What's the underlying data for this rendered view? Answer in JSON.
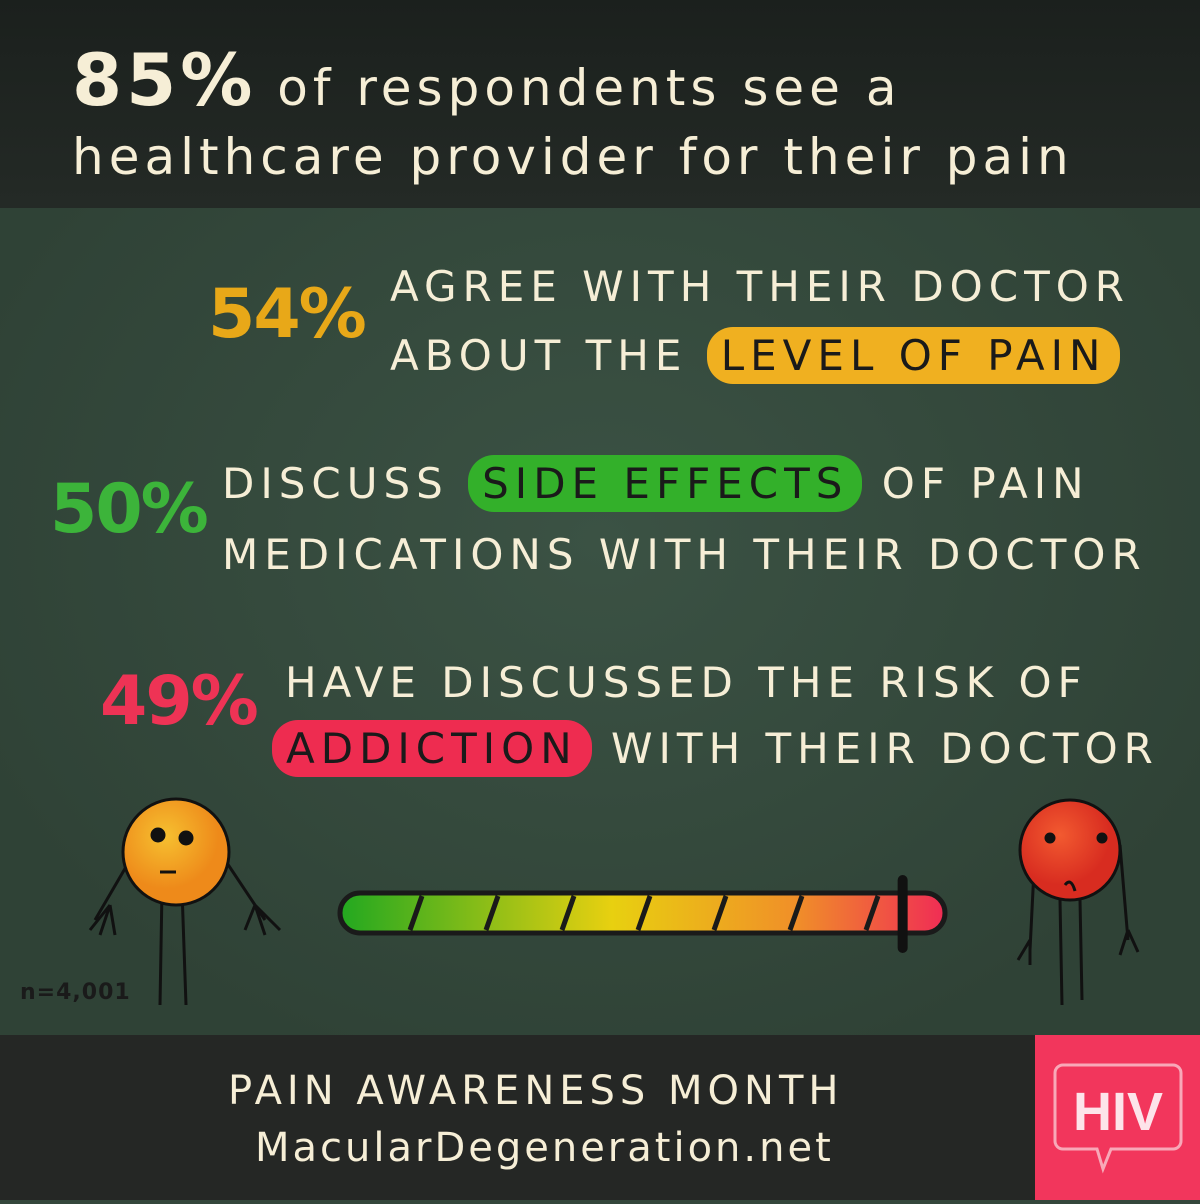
{
  "header": {
    "big_stat": "85%",
    "line1_rest": " of respondents see a",
    "line2": "healthcare provider for their pain"
  },
  "stats": [
    {
      "percent": "54%",
      "color": "#e8a818",
      "line1": "Agree with their doctor",
      "line2_before": "about the ",
      "highlight": "level of pain",
      "line2_after": ""
    },
    {
      "percent": "50%",
      "color": "#3cb43a",
      "line1_before": "Discuss ",
      "highlight": "side effects",
      "line1_after": " of pain",
      "line2": "medications with their doctor"
    },
    {
      "percent": "49%",
      "color": "#ee3355",
      "line1": "Have discussed the risk of",
      "highlight": "addiction",
      "line2_after": " with their doctor"
    }
  ],
  "pain_scale": {
    "level_pct": 93,
    "colors": [
      "#22a820",
      "#8cc820",
      "#e8d010",
      "#f09028",
      "#f03c50"
    ]
  },
  "sample_size": "n=4,001",
  "footer": {
    "line1": "PAIN AWARENESS MONTH",
    "line2": "MacularDegeneration.net"
  },
  "logo": {
    "text": "HIV",
    "color": "#f2365c"
  }
}
